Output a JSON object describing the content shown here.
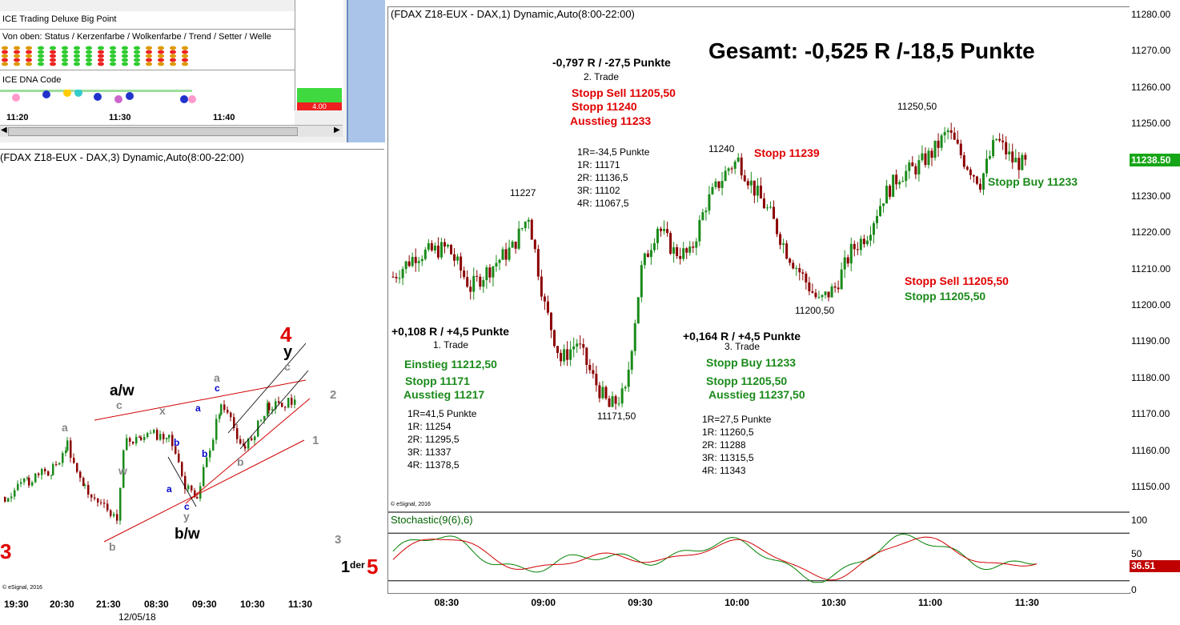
{
  "colors": {
    "up": "#1a8a1a",
    "down": "#8b0000",
    "green": "#008000",
    "red": "#e00000",
    "black": "#000000",
    "grid": "#c8c8c8"
  },
  "top_left": {
    "row1": "ICE Trading Deluxe Big Point",
    "row2": "Von oben: Status / Kerzenfarbe / Wolkenfarbe / Trend / Setter / Welle",
    "row3": "ICE DNA Code",
    "red_box": "4.00",
    "times": [
      "11:20",
      "11:30",
      "11:40"
    ]
  },
  "main": {
    "title": "(FDAX Z18-EUX - DAX,1) Dynamic,Auto(8:00-22:00)",
    "total": "Gesamt: -0,525 R /-18,5 Punkte",
    "copyright": "© eSignal, 2016",
    "current_price": "11238.50",
    "price_labels": [
      "11280.00",
      "11270.00",
      "11260.00",
      "11250.00",
      "11240.00",
      "11230.00",
      "11220.00",
      "11210.00",
      "11200.00",
      "11190.00",
      "11180.00",
      "11170.00",
      "11160.00",
      "11150.00"
    ],
    "time_labels": [
      "08:30",
      "09:00",
      "09:30",
      "10:00",
      "10:30",
      "11:00",
      "11:30"
    ],
    "trade1": {
      "result": "+0,108 R / +4,5 Punkte",
      "name": "1. Trade",
      "entry": "Einstieg 11212,50",
      "stop": "Stopp 11171",
      "exit": "Ausstieg 11217",
      "targets": [
        "1R=41,5 Punkte",
        "1R: 11254",
        "2R: 11295,5",
        "3R: 11337",
        "4R: 11378,5"
      ]
    },
    "trade2": {
      "result": "-0,797 R / -27,5 Punkte",
      "name": "2. Trade",
      "stop_sell": "Stopp Sell 11205,50",
      "stop": "Stopp 11240",
      "exit": "Ausstieg 11233",
      "targets": [
        "1R=-34,5 Punkte",
        "1R: 11171",
        "2R: 11136,5",
        "3R: 11102",
        "4R: 11067,5"
      ]
    },
    "trade3": {
      "result": "+0,164 R / +4,5 Punkte",
      "name": "3. Trade",
      "stop_buy": "Stopp Buy 11233",
      "stop": "Stopp 11205,50",
      "exit": "Ausstieg 11237,50",
      "targets": [
        "1R=27,5 Punkte",
        "1R: 11260,5",
        "2R: 11288",
        "3R: 11315,5",
        "4R: 11343"
      ]
    },
    "levels": {
      "h1": "11227",
      "l1": "11171,50",
      "h2": "11240",
      "l2": "11200,50",
      "h3": "11250,50"
    },
    "stopp_11239": "Stopp 11239",
    "stopp_buy_11233": "Stopp Buy 11233",
    "stopp_sell_right": "Stopp Sell 11205,50",
    "stopp_right": "Stopp 11205,50"
  },
  "stoch": {
    "title": "Stochastic(9(6),6)",
    "scale": [
      "100",
      "50",
      "0"
    ],
    "value": "36.51"
  },
  "left": {
    "title": "(FDAX Z18-EUX - DAX,3) Dynamic,Auto(8:00-22:00)",
    "copyright": "© eSignal, 2016",
    "time_labels": [
      "19:30",
      "20:30",
      "21:30",
      "08:30",
      "09:30",
      "10:30",
      "11:30"
    ],
    "date": "12/05/18",
    "waves": {
      "n3": "3",
      "n4": "4",
      "n5": "5",
      "der": "der",
      "one": "1",
      "aw": "a/w",
      "bw": "b/w",
      "y": "y",
      "g1": "1",
      "g2": "2",
      "g3": "3",
      "a": "a",
      "b": "b",
      "c": "c",
      "w": "w",
      "x": "x"
    }
  },
  "chart_data": [
    {
      "type": "candlestick",
      "title": "(FDAX Z18-EUX - DAX,1) Dynamic,Auto(8:00-22:00)",
      "x_ticks": [
        "08:30",
        "09:00",
        "09:30",
        "10:00",
        "10:30",
        "11:00",
        "11:30"
      ],
      "ylim": [
        11140,
        11285
      ],
      "close_path": [
        [
          "08:13",
          11208
        ],
        [
          "08:20",
          11214
        ],
        [
          "08:30",
          11216
        ],
        [
          "08:37",
          11205
        ],
        [
          "08:45",
          11212
        ],
        [
          "08:50",
          11216
        ],
        [
          "08:55",
          11225
        ],
        [
          "09:00",
          11200
        ],
        [
          "09:05",
          11185
        ],
        [
          "09:10",
          11190
        ],
        [
          "09:15",
          11180
        ],
        [
          "09:20",
          11172
        ],
        [
          "09:25",
          11176
        ],
        [
          "09:30",
          11210
        ],
        [
          "09:35",
          11222
        ],
        [
          "09:40",
          11215
        ],
        [
          "09:45",
          11214
        ],
        [
          "09:50",
          11228
        ],
        [
          "09:57",
          11238
        ],
        [
          "10:00",
          11240
        ],
        [
          "10:05",
          11232
        ],
        [
          "10:10",
          11225
        ],
        [
          "10:15",
          11215
        ],
        [
          "10:20",
          11208
        ],
        [
          "10:25",
          11201
        ],
        [
          "10:30",
          11205
        ],
        [
          "10:35",
          11215
        ],
        [
          "10:40",
          11220
        ],
        [
          "10:45",
          11230
        ],
        [
          "10:50",
          11236
        ],
        [
          "10:55",
          11238
        ],
        [
          "11:00",
          11242
        ],
        [
          "11:05",
          11248
        ],
        [
          "11:10",
          11240
        ],
        [
          "11:15",
          11234
        ],
        [
          "11:20",
          11246
        ],
        [
          "11:25",
          11240
        ],
        [
          "11:30",
          11238.5
        ]
      ]
    },
    {
      "type": "line",
      "title": "Stochastic(9(6),6)",
      "ylim": [
        0,
        100
      ],
      "series": [
        {
          "name": "Stochastic(9(6),6)",
          "last": 36.51
        }
      ]
    },
    {
      "type": "candlestick",
      "title": "(FDAX Z18-EUX - DAX,3) Dynamic,Auto(8:00-22:00)",
      "x_ticks": [
        "19:30",
        "20:30",
        "21:30",
        "08:30",
        "09:30",
        "10:30",
        "11:30"
      ]
    }
  ]
}
